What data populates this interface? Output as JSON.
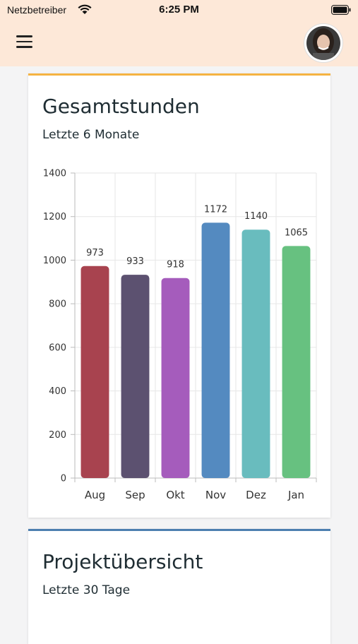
{
  "status_bar": {
    "carrier": "Netzbetreiber",
    "time": "6:25 PM"
  },
  "header": {
    "menu_icon": "hamburger-menu-icon",
    "avatar_icon": "user-avatar",
    "background": "#fde8d8"
  },
  "cards": [
    {
      "title": "Gesamtstunden",
      "subtitle": "Letzte 6 Monate",
      "accent": "#f5b342"
    },
    {
      "title": "Projektübersicht",
      "subtitle": "Letzte 30 Tage",
      "accent": "#4d7fb0"
    }
  ],
  "chart_data": {
    "type": "bar",
    "categories": [
      "Aug",
      "Sep",
      "Okt",
      "Nov",
      "Dez",
      "Jan"
    ],
    "values": [
      973,
      933,
      918,
      1172,
      1140,
      1065
    ],
    "colors": [
      "#a8434f",
      "#5c5170",
      "#a55cbc",
      "#548ac0",
      "#69bcbe",
      "#67c180"
    ],
    "ylim": [
      0,
      1400
    ],
    "yticks": [
      0,
      200,
      400,
      600,
      800,
      1000,
      1200,
      1400
    ],
    "grid": true,
    "data_labels": true
  }
}
